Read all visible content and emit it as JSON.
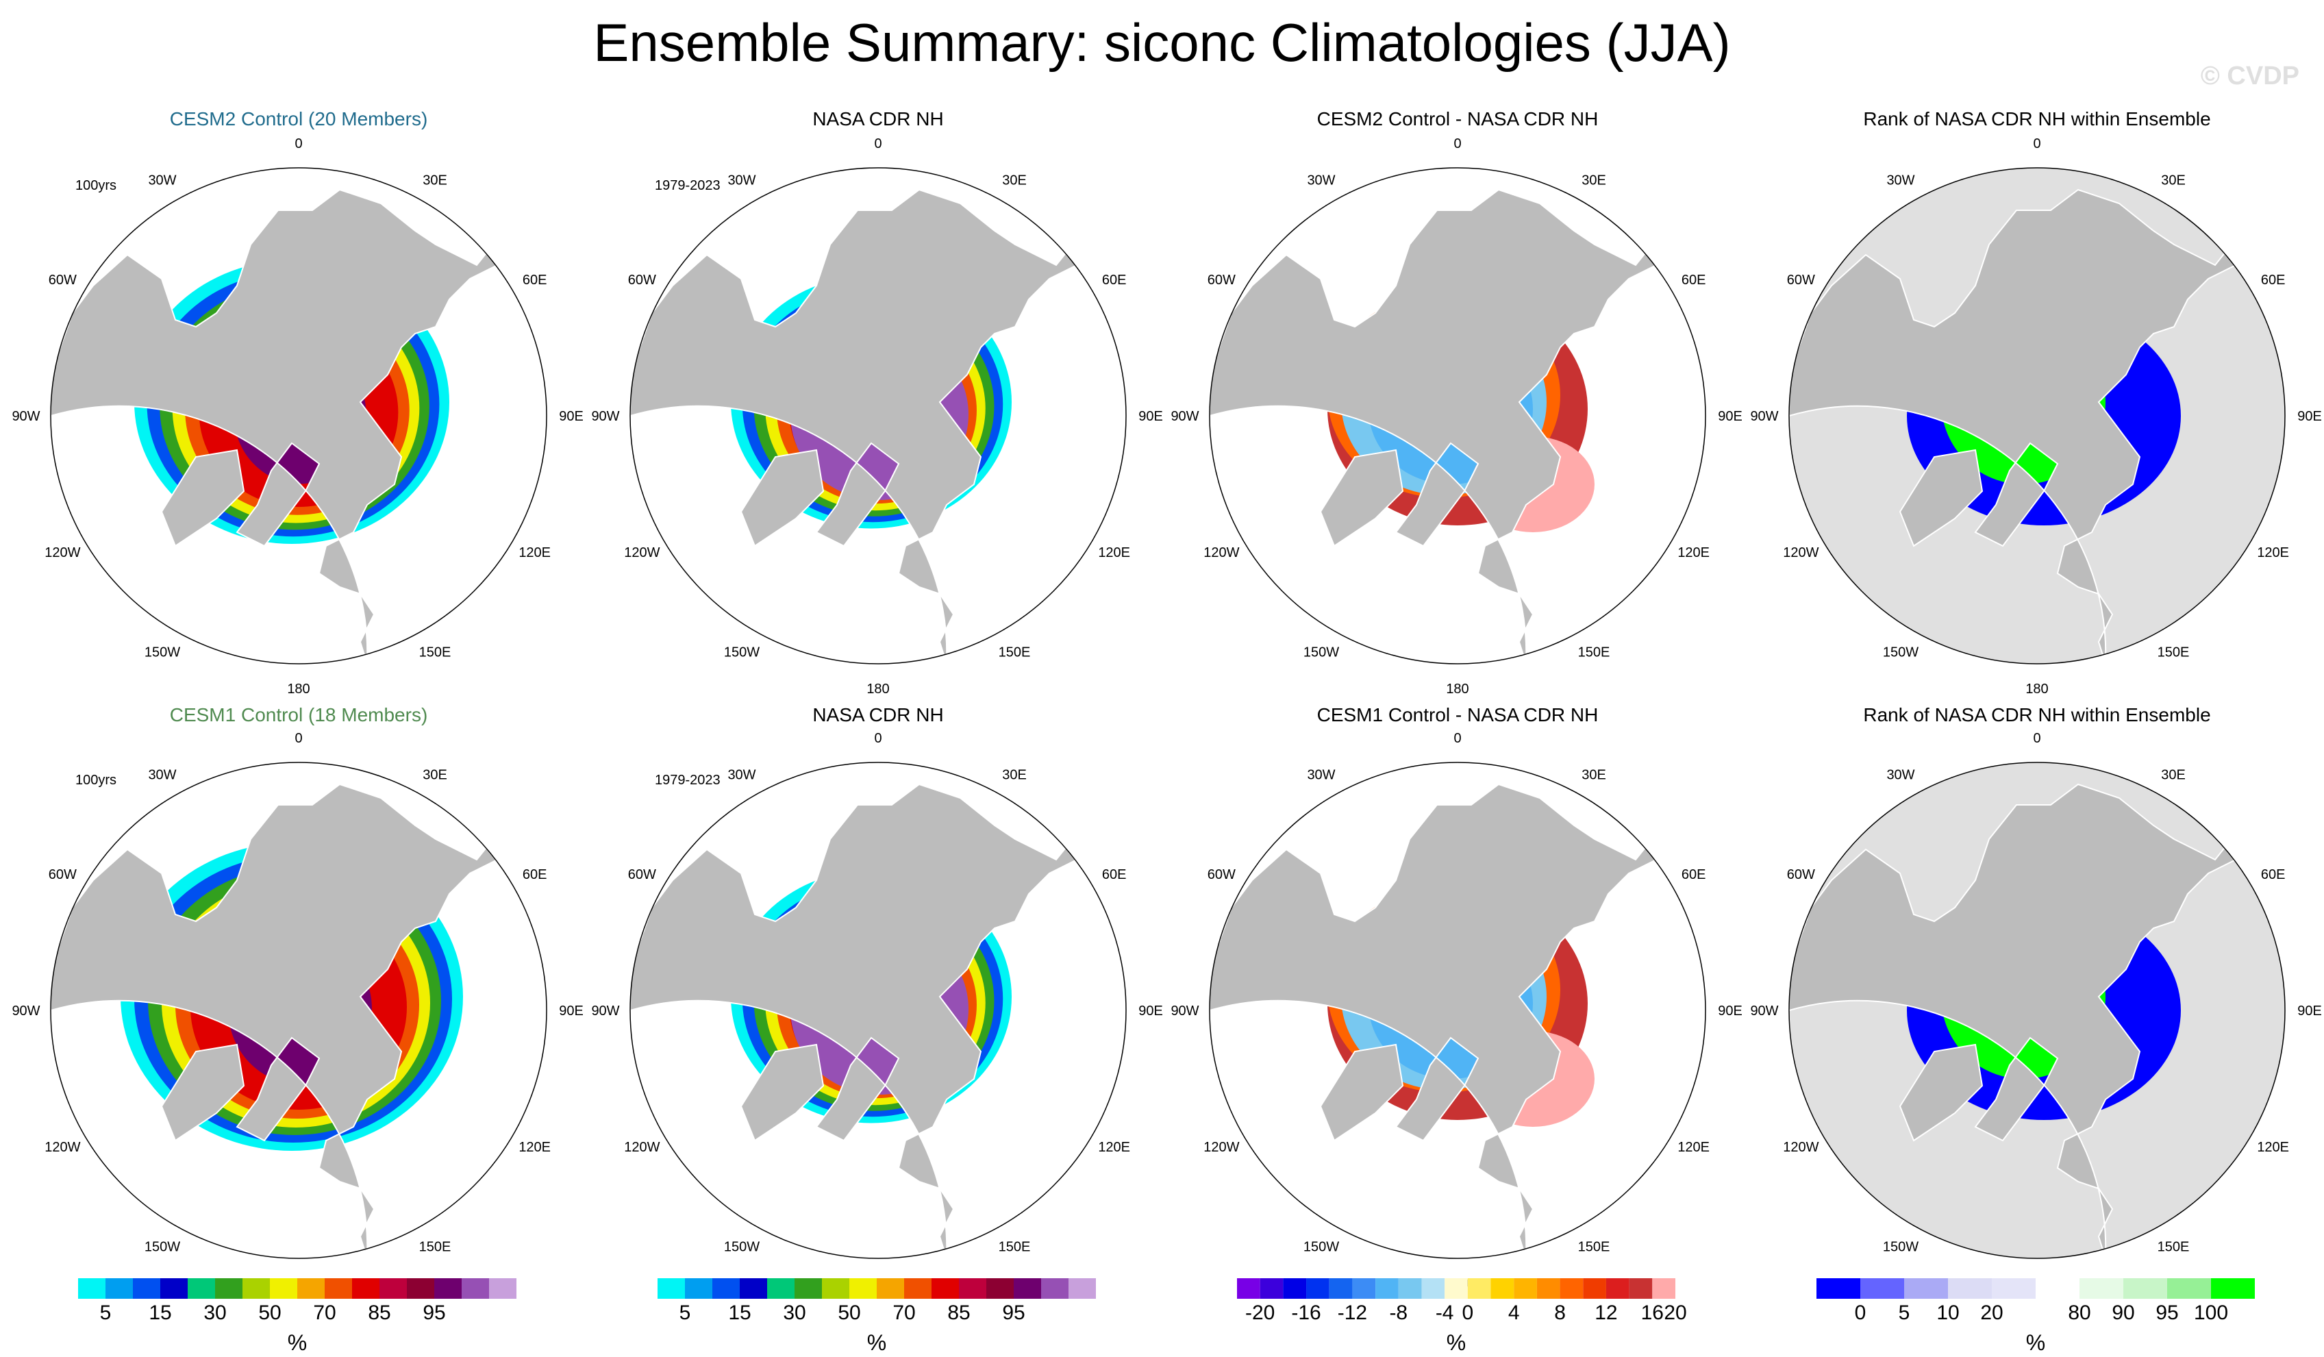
{
  "title": "Ensemble Summary: siconc Climatologies (JJA)",
  "watermark": "© CVDP",
  "chart_data": {
    "type": "polar-map-panels",
    "variable": "siconc",
    "season": "JJA",
    "colors": {
      "land": "#bcbcbc",
      "ocean": "#ffffff",
      "rank_background": "#e0e0e0",
      "title_cesm2": "#1f6b8c",
      "title_cesm1": "#4f8a4f"
    },
    "lon_labels": [
      "180",
      "150E",
      "120E",
      "90E",
      "60E",
      "30E",
      "0",
      "30W",
      "60W",
      "90W",
      "120W",
      "150W"
    ],
    "panels": [
      {
        "title": "CESM2 Control (20 Members)",
        "subtitle": "100yrs",
        "field": "concentration",
        "ensemble": "cesm2"
      },
      {
        "title": "NASA CDR NH",
        "subtitle": "1979-2023",
        "field": "concentration",
        "ensemble": "obs"
      },
      {
        "title": "CESM2 Control - NASA CDR NH",
        "subtitle": "",
        "field": "difference",
        "ensemble": "cesm2"
      },
      {
        "title": "Rank of NASA CDR NH within Ensemble",
        "subtitle": "",
        "field": "rank",
        "ensemble": "cesm2"
      },
      {
        "title": "CESM1 Control (18 Members)",
        "subtitle": "100yrs",
        "field": "concentration",
        "ensemble": "cesm1"
      },
      {
        "title": "NASA CDR NH",
        "subtitle": "1979-2023",
        "field": "concentration",
        "ensemble": "obs"
      },
      {
        "title": "CESM1 Control - NASA CDR NH",
        "subtitle": "",
        "field": "difference",
        "ensemble": "cesm1"
      },
      {
        "title": "Rank of NASA CDR NH within Ensemble",
        "subtitle": "",
        "field": "rank",
        "ensemble": "cesm1"
      }
    ],
    "colorbars": [
      {
        "units": "%",
        "colors": [
          "#00f5f5",
          "#009ef0",
          "#0050f0",
          "#0000c8",
          "#00c878",
          "#32a01e",
          "#aad200",
          "#f0f000",
          "#f5a500",
          "#f05000",
          "#e00000",
          "#be003c",
          "#8c0032",
          "#6e006e",
          "#9650b4",
          "#c8a0dc"
        ],
        "labels": [
          "5",
          "15",
          "30",
          "50",
          "70",
          "85",
          "95"
        ],
        "label_after_box": [
          0,
          2,
          4,
          6,
          8,
          10,
          12
        ]
      },
      {
        "units": "%",
        "colors": [
          "#00f5f5",
          "#009ef0",
          "#0050f0",
          "#0000c8",
          "#00c878",
          "#32a01e",
          "#aad200",
          "#f0f000",
          "#f5a500",
          "#f05000",
          "#e00000",
          "#be003c",
          "#8c0032",
          "#6e006e",
          "#9650b4",
          "#c8a0dc"
        ],
        "labels": [
          "5",
          "15",
          "30",
          "50",
          "70",
          "85",
          "95"
        ],
        "label_after_box": [
          0,
          2,
          4,
          6,
          8,
          10,
          12
        ]
      },
      {
        "units": "%",
        "colors": [
          "#7800e6",
          "#3c00dc",
          "#0000e6",
          "#0032f0",
          "#1464f0",
          "#3c8cf5",
          "#50b4f5",
          "#78c8f0",
          "#b4e1f5",
          "#fffacd",
          "#ffeb64",
          "#ffd200",
          "#ffb400",
          "#ff8c00",
          "#ff6400",
          "#f03c00",
          "#dc1e1e",
          "#c83232",
          "#ffaaaa"
        ],
        "labels": [
          "-20",
          "-16",
          "-12",
          "-8",
          "-4",
          "0",
          "4",
          "8",
          "12",
          "16",
          "20"
        ],
        "label_after_box": [
          0,
          2,
          4,
          6,
          8,
          9,
          11,
          13,
          15,
          17,
          18
        ]
      },
      {
        "units": "%",
        "colors": [
          "#0000ff",
          "#6464ff",
          "#aaaaf5",
          "#dcdcf5",
          "#e4e4f8",
          "#ffffff",
          "#e6fae6",
          "#c8f5c8",
          "#96f096",
          "#00ff00"
        ],
        "labels": [
          "0",
          "5",
          "10",
          "20",
          "80",
          "90",
          "95",
          "100"
        ],
        "label_after_box": [
          0,
          1,
          2,
          3,
          5,
          6,
          7,
          8
        ]
      }
    ]
  }
}
